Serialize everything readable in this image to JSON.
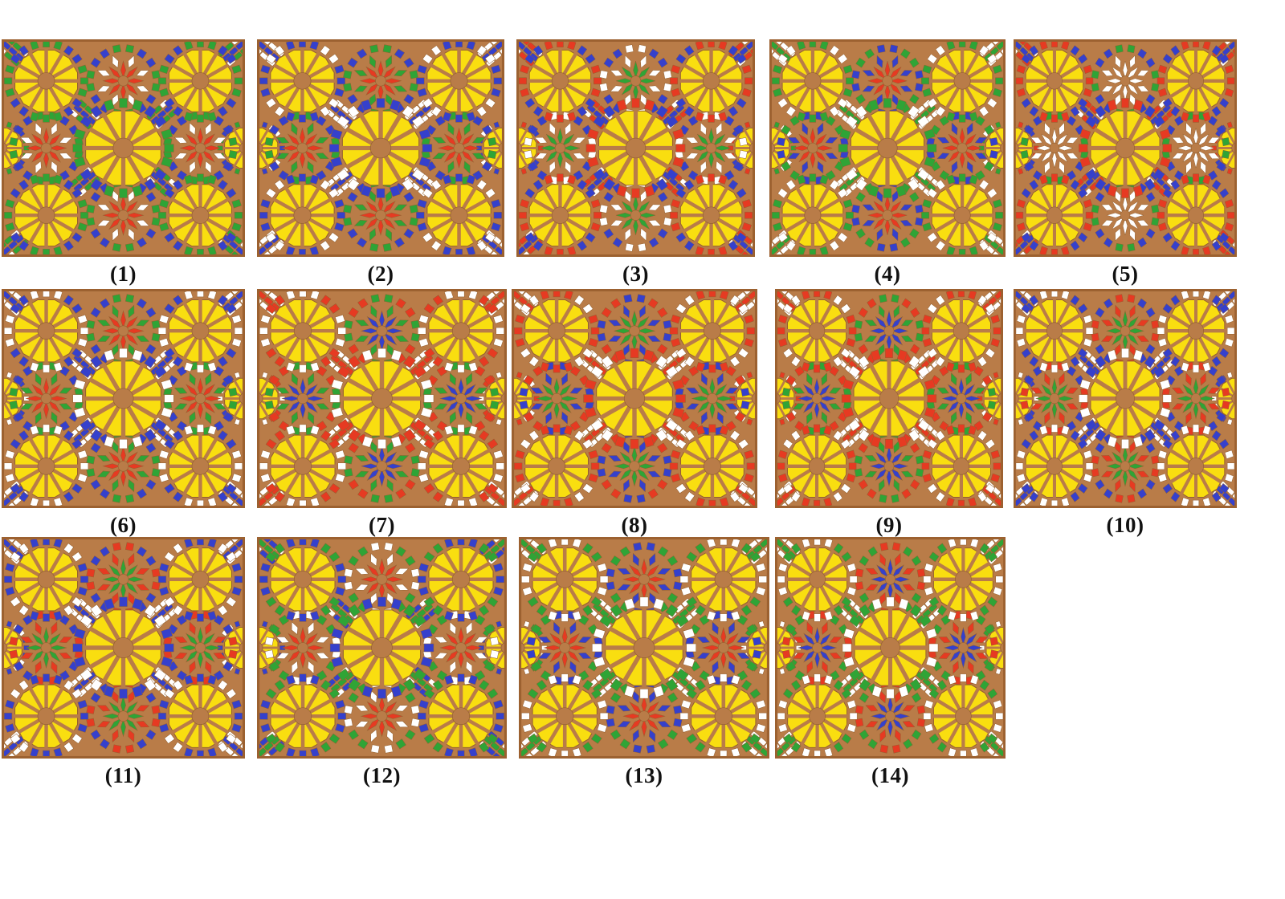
{
  "figure": {
    "type": "geometric-pattern-grid",
    "description": "Fourteen numbered orosi stained-glass rosette pattern variants",
    "panel_count": 14,
    "panels": [
      {
        "label": "(1)",
        "rosette_ring": "green",
        "star_inner": "red",
        "star_outer": "white",
        "star_ring": "green",
        "diag_a": "blue",
        "diag_b": "green"
      },
      {
        "label": "(2)",
        "rosette_ring": "blue",
        "star_inner": "red",
        "star_outer": "green",
        "star_ring": "green",
        "diag_a": "blue",
        "diag_b": "white"
      },
      {
        "label": "(3)",
        "rosette_ring": "red",
        "star_inner": "green",
        "star_outer": "white",
        "star_ring": "white",
        "diag_a": "blue",
        "diag_b": "red"
      },
      {
        "label": "(4)",
        "rosette_ring": "green",
        "star_inner": "red",
        "star_outer": "blue",
        "star_ring": "blue",
        "diag_a": "green",
        "diag_b": "white"
      },
      {
        "label": "(5)",
        "rosette_ring": "red",
        "star_inner": "white",
        "star_outer": "white",
        "star_ring": "green",
        "diag_a": "blue",
        "diag_b": "red"
      },
      {
        "label": "(6)",
        "rosette_ring": "white",
        "star_inner": "red",
        "star_outer": "green",
        "star_ring": "green",
        "diag_a": "blue",
        "diag_b": "white"
      },
      {
        "label": "(7)",
        "rosette_ring": "white",
        "star_inner": "blue",
        "star_outer": "green",
        "star_ring": "green",
        "diag_a": "red",
        "diag_b": "white"
      },
      {
        "label": "(8)",
        "rosette_ring": "red",
        "star_inner": "green",
        "star_outer": "blue",
        "star_ring": "blue",
        "diag_a": "red",
        "diag_b": "white"
      },
      {
        "label": "(9)",
        "rosette_ring": "red",
        "star_inner": "blue",
        "star_outer": "green",
        "star_ring": "green",
        "diag_a": "red",
        "diag_b": "white"
      },
      {
        "label": "(10)",
        "rosette_ring": "white",
        "star_inner": "green",
        "star_outer": "red",
        "star_ring": "red",
        "diag_a": "blue",
        "diag_b": "white"
      },
      {
        "label": "(11)",
        "rosette_ring": "blue",
        "star_inner": "green",
        "star_outer": "red",
        "star_ring": "red",
        "diag_a": "blue",
        "diag_b": "white"
      },
      {
        "label": "(12)",
        "rosette_ring": "blue",
        "star_inner": "red",
        "star_outer": "white",
        "star_ring": "white",
        "diag_a": "green",
        "diag_b": "blue"
      },
      {
        "label": "(13)",
        "rosette_ring": "white",
        "star_inner": "red",
        "star_outer": "blue",
        "star_ring": "blue",
        "diag_a": "green",
        "diag_b": "white"
      },
      {
        "label": "(14)",
        "rosette_ring": "white",
        "star_inner": "blue",
        "star_outer": "red",
        "star_ring": "red",
        "diag_a": "green",
        "diag_b": "white"
      }
    ]
  },
  "palette": {
    "brown": "#B97C48",
    "border": "#9C6130",
    "outline": "#936030",
    "yellow": "#F9DE10",
    "red": "#E63A22",
    "green": "#2FA436",
    "blue": "#3540CC",
    "white": "#FFFFFF",
    "label_color": "#111111"
  }
}
